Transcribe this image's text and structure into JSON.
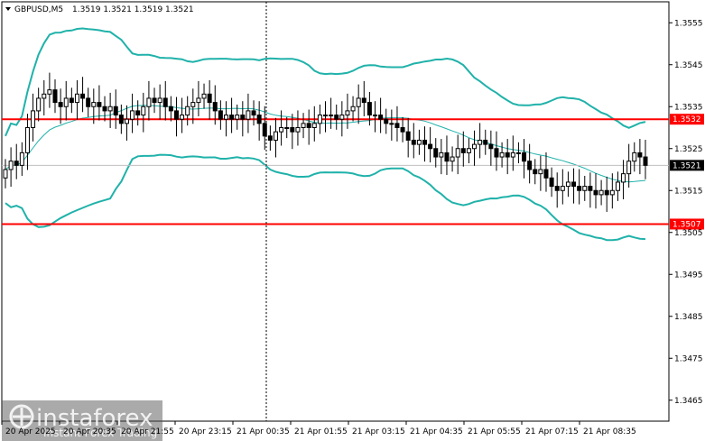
{
  "header": {
    "symbol": "GBPUSD,M5",
    "ohlc": "1.3519 1.3521 1.3519 1.3521"
  },
  "watermark": {
    "brand": "instaforex",
    "tagline": "Instant Forex Trading"
  },
  "colors": {
    "candle": "#000000",
    "bands": "#20b2aa",
    "middle": "#20b2aa",
    "level_line": "#ff0000",
    "tag_red": "#ff0000",
    "tag_dark": "#000000",
    "grid": "#c0c0c0"
  },
  "chart_data": {
    "type": "candlestick",
    "title": "GBPUSD,M5",
    "ylim": [
      1.346,
      1.356
    ],
    "y_ticks": [
      "1.3555",
      "1.3545",
      "1.3535",
      "1.3525",
      "1.3515",
      "1.3505",
      "1.3495",
      "1.3485",
      "1.3475",
      "1.3465"
    ],
    "y_tick_values": [
      1.3555,
      1.3545,
      1.3535,
      1.3525,
      1.3515,
      1.3505,
      1.3495,
      1.3485,
      1.3475,
      1.3465
    ],
    "x_ticks": [
      "20 Apr 2025",
      "20 Apr 20:35",
      "20 Apr 21:55",
      "20 Apr 23:15",
      "21 Apr 00:35",
      "21 Apr 01:55",
      "21 Apr 03:15",
      "21 Apr 04:35",
      "21 Apr 05:55",
      "21 Apr 07:15",
      "21 Apr 08:35"
    ],
    "horizontal_levels": [
      {
        "label": "1.3532",
        "value": 1.3532
      },
      {
        "label": "1.3507",
        "value": 1.3507
      }
    ],
    "current_price": {
      "label": "1.3521",
      "value": 1.3521
    },
    "close_series": [
      1.352,
      1.3522,
      1.3521,
      1.3524,
      1.353,
      1.3534,
      1.3537,
      1.3538,
      1.3539,
      1.3536,
      1.3535,
      1.3537,
      1.3536,
      1.3538,
      1.3537,
      1.3535,
      1.3536,
      1.3535,
      1.3534,
      1.3535,
      1.3533,
      1.3531,
      1.3532,
      1.3534,
      1.3533,
      1.3535,
      1.3537,
      1.3536,
      1.3537,
      1.3535,
      1.3534,
      1.3532,
      1.3533,
      1.3535,
      1.3536,
      1.3537,
      1.3538,
      1.3536,
      1.3534,
      1.3532,
      1.3533,
      1.3532,
      1.3533,
      1.3532,
      1.3534,
      1.3533,
      1.3531,
      1.3528,
      1.3527,
      1.3529,
      1.353,
      1.353,
      1.3529,
      1.353,
      1.3531,
      1.353,
      1.3531,
      1.3533,
      1.3533,
      1.3533,
      1.3532,
      1.3533,
      1.3534,
      1.3535,
      1.3537,
      1.3536,
      1.3533,
      1.3533,
      1.3532,
      1.3531,
      1.3531,
      1.353,
      1.3529,
      1.3527,
      1.3526,
      1.3527,
      1.3526,
      1.3525,
      1.3523,
      1.3524,
      1.3522,
      1.3523,
      1.3525,
      1.3524,
      1.3525,
      1.3526,
      1.3527,
      1.3526,
      1.3525,
      1.3523,
      1.3524,
      1.3523,
      1.3524,
      1.3524,
      1.3522,
      1.352,
      1.3519,
      1.352,
      1.3518,
      1.3516,
      1.3515,
      1.3516,
      1.3517,
      1.3516,
      1.3515,
      1.3516,
      1.3515,
      1.3514,
      1.3515,
      1.3514,
      1.3515,
      1.3517,
      1.3519,
      1.3522,
      1.3524,
      1.3523,
      1.3521
    ],
    "series": [
      {
        "values_key": "close_series"
      },
      {
        "bands": "upper/middle/lower"
      }
    ]
  }
}
